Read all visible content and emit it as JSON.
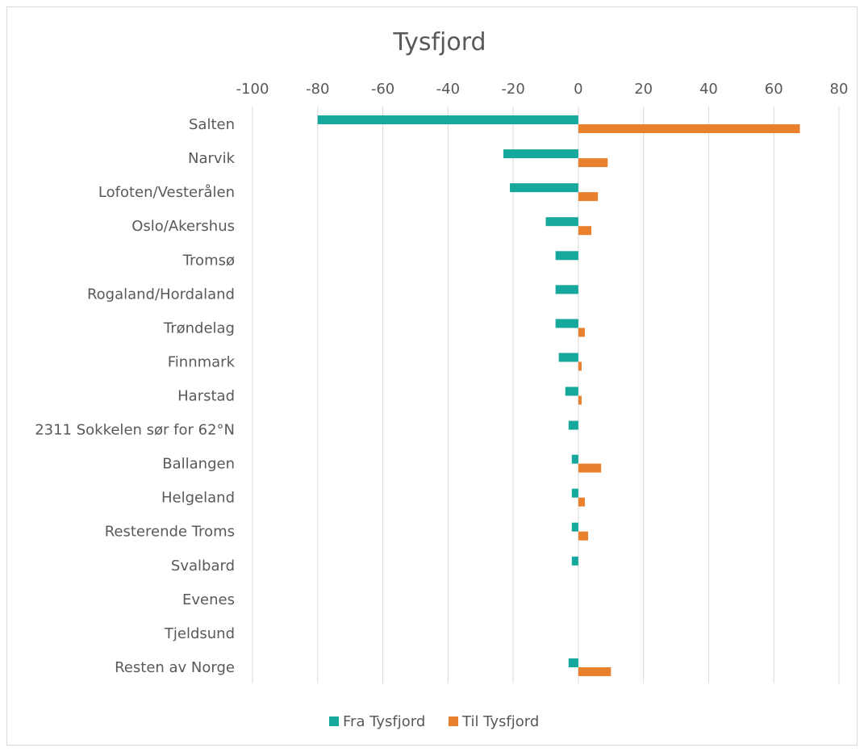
{
  "chart_data": {
    "type": "bar",
    "orientation": "horizontal",
    "title": "Tysfjord",
    "xlim": [
      -100,
      80
    ],
    "x_ticks": [
      "-100",
      "-80",
      "-60",
      "-40",
      "-20",
      "0",
      "20",
      "40",
      "60",
      "80"
    ],
    "x_tick_values": [
      -100,
      -80,
      -60,
      -40,
      -20,
      0,
      20,
      40,
      60,
      80
    ],
    "grid": "vertical",
    "legend_position": "bottom",
    "categories": [
      "Salten",
      "Narvik",
      "Lofoten/Vesterålen",
      "Oslo/Akershus",
      "Tromsø",
      "Rogaland/Hordaland",
      "Trøndelag",
      "Finnmark",
      "Harstad",
      "2311 Sokkelen sør for 62°N",
      "Ballangen",
      "Helgeland",
      "Resterende Troms",
      "Svalbard",
      "Evenes",
      "Tjeldsund",
      "Resten av Norge"
    ],
    "series": [
      {
        "name": "Fra Tysfjord",
        "color": "#16A89C",
        "values": [
          -80,
          -23,
          -21,
          -10,
          -7,
          -7,
          -7,
          -6,
          -4,
          -3,
          -2,
          -2,
          -2,
          -2,
          0,
          0,
          -3
        ]
      },
      {
        "name": "Til Tysfjord",
        "color": "#E8802E",
        "values": [
          68,
          9,
          6,
          4,
          0,
          0,
          2,
          1,
          1,
          0,
          7,
          2,
          3,
          0,
          0,
          0,
          10
        ]
      }
    ]
  }
}
